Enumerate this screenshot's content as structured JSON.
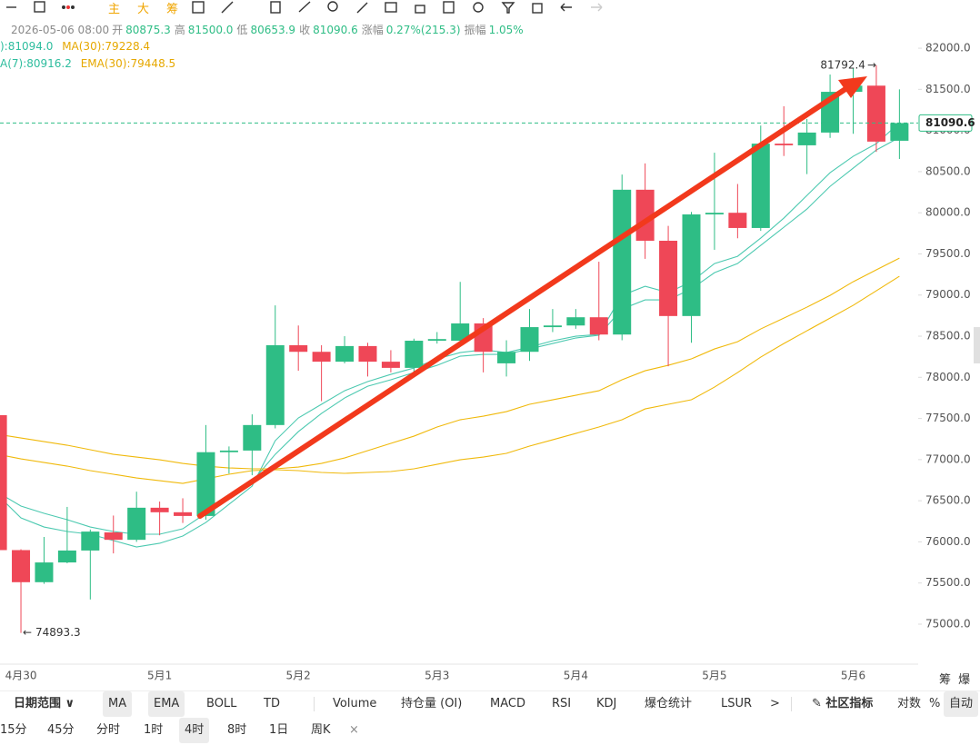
{
  "chart_data": {
    "type": "candlestick",
    "ylim": [
      74525,
      82310
    ],
    "yticks": [
      {
        "value": 75000,
        "label": "75000.0"
      },
      {
        "value": 75500,
        "label": "75500.0"
      },
      {
        "value": 76000,
        "label": "76000.0"
      },
      {
        "value": 76500,
        "label": "76500.0"
      },
      {
        "value": 77000,
        "label": "77000.0"
      },
      {
        "value": 77500,
        "label": "77500.0"
      },
      {
        "value": 78000,
        "label": "78000.0"
      },
      {
        "value": 78500,
        "label": "78500.0"
      },
      {
        "value": 79000,
        "label": "79000.0"
      },
      {
        "value": 79500,
        "label": "79500.0"
      },
      {
        "value": 80000,
        "label": "80000.0"
      },
      {
        "value": 80500,
        "label": "80500.0"
      },
      {
        "value": 81000,
        "label": "81000.0"
      },
      {
        "value": 81500,
        "label": "81500.0"
      },
      {
        "value": 82000,
        "label": "82000.0"
      }
    ],
    "categories": [
      null,
      "4月30",
      null,
      null,
      null,
      null,
      null,
      "5月1",
      null,
      null,
      null,
      null,
      null,
      "5月2",
      null,
      null,
      null,
      null,
      null,
      "5月3",
      null,
      null,
      null,
      null,
      null,
      "5月4",
      null,
      null,
      null,
      null,
      null,
      "5月5",
      null,
      null,
      null,
      null,
      null,
      "5月6",
      null,
      null
    ],
    "up_color": "#2ebd85",
    "down_color": "#ef4757",
    "candles": [
      {
        "open": 77540,
        "high": 77540,
        "low": 75700,
        "close": 75900
      },
      {
        "open": 75900,
        "high": 75910,
        "low": 74893.3,
        "close": 75510
      },
      {
        "open": 75510,
        "high": 76060,
        "low": 75490,
        "close": 75750
      },
      {
        "open": 75750,
        "high": 76425,
        "low": 75740,
        "close": 75895
      },
      {
        "open": 75895,
        "high": 76150,
        "low": 75300,
        "close": 76125
      },
      {
        "open": 76115,
        "high": 76320,
        "low": 75860,
        "close": 76025
      },
      {
        "open": 76025,
        "high": 76610,
        "low": 76000,
        "close": 76415
      },
      {
        "open": 76415,
        "high": 76490,
        "low": 76080,
        "close": 76360
      },
      {
        "open": 76360,
        "high": 76530,
        "low": 76230,
        "close": 76315
      },
      {
        "open": 76315,
        "high": 77420,
        "low": 76270,
        "close": 77090
      },
      {
        "open": 77090,
        "high": 77160,
        "low": 76830,
        "close": 77110
      },
      {
        "open": 77110,
        "high": 77550,
        "low": 76810,
        "close": 77420
      },
      {
        "open": 77420,
        "high": 78875,
        "low": 77380,
        "close": 78390
      },
      {
        "open": 78390,
        "high": 78630,
        "low": 78080,
        "close": 78310
      },
      {
        "open": 78310,
        "high": 78390,
        "low": 77710,
        "close": 78190
      },
      {
        "open": 78190,
        "high": 78500,
        "low": 78170,
        "close": 78380
      },
      {
        "open": 78380,
        "high": 78420,
        "low": 78010,
        "close": 78190
      },
      {
        "open": 78190,
        "high": 78330,
        "low": 78060,
        "close": 78115
      },
      {
        "open": 78115,
        "high": 78470,
        "low": 78060,
        "close": 78445
      },
      {
        "open": 78445,
        "high": 78550,
        "low": 78410,
        "close": 78465
      },
      {
        "open": 78445,
        "high": 79160,
        "low": 78390,
        "close": 78655
      },
      {
        "open": 78655,
        "high": 78720,
        "low": 78060,
        "close": 78310
      },
      {
        "open": 78170,
        "high": 78450,
        "low": 78010,
        "close": 78310
      },
      {
        "open": 78310,
        "high": 78830,
        "low": 78200,
        "close": 78610
      },
      {
        "open": 78610,
        "high": 78830,
        "low": 78550,
        "close": 78630
      },
      {
        "open": 78630,
        "high": 78830,
        "low": 78590,
        "close": 78730
      },
      {
        "open": 78730,
        "high": 79405,
        "low": 78450,
        "close": 78520
      },
      {
        "open": 78520,
        "high": 80465,
        "low": 78450,
        "close": 80280
      },
      {
        "open": 80280,
        "high": 80600,
        "low": 79440,
        "close": 79660
      },
      {
        "open": 79660,
        "high": 79840,
        "low": 78135,
        "close": 78745
      },
      {
        "open": 78745,
        "high": 80010,
        "low": 78420,
        "close": 79980
      },
      {
        "open": 79980,
        "high": 80730,
        "low": 79550,
        "close": 80000
      },
      {
        "open": 80000,
        "high": 80350,
        "low": 79690,
        "close": 79815
      },
      {
        "open": 79815,
        "high": 81060,
        "low": 79780,
        "close": 80840
      },
      {
        "open": 80840,
        "high": 81295,
        "low": 80690,
        "close": 80820
      },
      {
        "open": 80820,
        "high": 81140,
        "low": 80470,
        "close": 80975
      },
      {
        "open": 80975,
        "high": 81680,
        "low": 80910,
        "close": 81470
      },
      {
        "open": 81470,
        "high": 81760,
        "low": 80960,
        "close": 81545
      },
      {
        "open": 81545,
        "high": 81792.4,
        "low": 80740,
        "close": 80865
      },
      {
        "open": 80875.3,
        "high": 81500,
        "low": 80653.9,
        "close": 81090.6
      }
    ],
    "series": [
      {
        "legend": "):81094.0",
        "color": "#4cc9b0",
        "values": [
          76568,
          76292,
          76181,
          76126,
          76093,
          76016,
          75938,
          75983,
          76071,
          76236,
          76457,
          76678,
          77230,
          77506,
          77672,
          77837,
          77948,
          78036,
          78113,
          78224,
          78301,
          78334,
          78301,
          78367,
          78444,
          78500,
          78522,
          78996,
          79107,
          79030,
          79162,
          79383,
          79471,
          79692,
          79935,
          80211,
          80487,
          80686,
          80840,
          81094.0
        ]
      },
      {
        "legend": "MA(30):79228.4",
        "color": "#f0b90b",
        "values": [
          77064,
          77009,
          76965,
          76921,
          76866,
          76822,
          76777,
          76744,
          76711,
          76766,
          76822,
          76866,
          76877,
          76866,
          76844,
          76833,
          76844,
          76855,
          76888,
          76943,
          76998,
          77031,
          77076,
          77164,
          77241,
          77318,
          77396,
          77484,
          77616,
          77672,
          77727,
          77881,
          78058,
          78246,
          78411,
          78566,
          78720,
          78875,
          79052,
          79228.4
        ]
      },
      {
        "legend": "A(7):80916.2",
        "color": "#4cc9b0",
        "values": [
          76601,
          76435,
          76347,
          76270,
          76181,
          76126,
          76093,
          76093,
          76159,
          76347,
          76535,
          76733,
          77064,
          77340,
          77561,
          77749,
          77892,
          77970,
          78058,
          78146,
          78257,
          78279,
          78279,
          78345,
          78411,
          78478,
          78511,
          78831,
          78941,
          78941,
          79074,
          79272,
          79383,
          79604,
          79824,
          80045,
          80321,
          80542,
          80763,
          80916.2
        ]
      },
      {
        "legend": "EMA(30):79448.5",
        "color": "#f0b90b",
        "values": [
          77307,
          77263,
          77219,
          77175,
          77120,
          77064,
          77031,
          76998,
          76954,
          76921,
          76899,
          76888,
          76888,
          76910,
          76954,
          77020,
          77109,
          77197,
          77285,
          77396,
          77484,
          77528,
          77583,
          77672,
          77727,
          77782,
          77837,
          77970,
          78080,
          78146,
          78224,
          78345,
          78433,
          78588,
          78720,
          78853,
          78996,
          79162,
          79306,
          79448.5
        ]
      }
    ],
    "header": [
      "2026-05-06 08:00",
      "开",
      "80875.3",
      "高",
      "81500.0",
      "低",
      "80653.9",
      "收",
      "81090.6",
      "涨幅",
      "0.27%(215.3)",
      "振幅",
      "1.05%"
    ],
    "high_marker": "→",
    "low_marker": "←",
    "axis_side_labels": [
      "筹",
      "爆"
    ]
  },
  "toolbar": {
    "tabs": [
      "主",
      "大",
      "筹"
    ],
    "indicators": [
      "日期范围",
      "MA",
      "EMA",
      "BOLL",
      "TD",
      "Volume",
      "持仓量 (OI)",
      "MACD",
      "RSI",
      "KDJ",
      "爆仓统计",
      "LSUR",
      ">",
      "社区指标",
      "对数",
      "%",
      "自动"
    ],
    "intervals": [
      "15分",
      "45分",
      "分时",
      "1时",
      "4时",
      "8时",
      "1日",
      "周K",
      "×"
    ]
  }
}
